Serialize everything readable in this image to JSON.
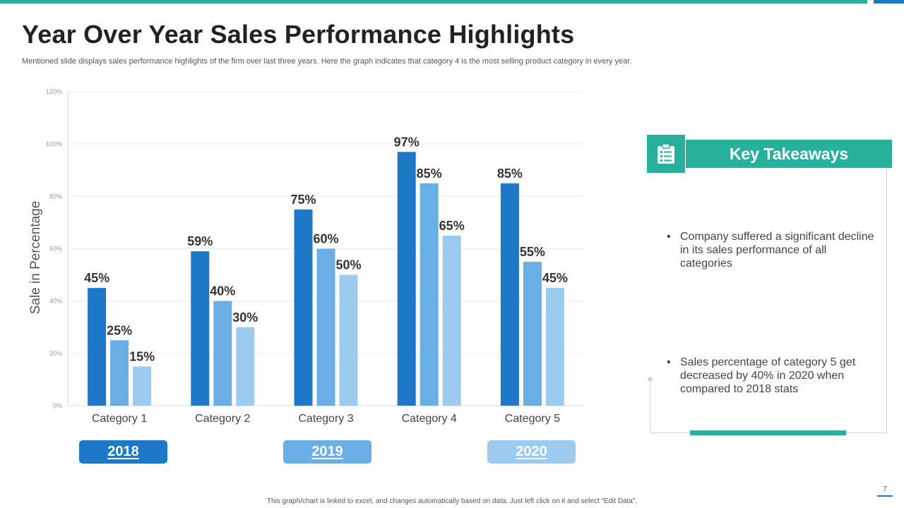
{
  "slide": {
    "title": "Year Over Year Sales Performance Highlights",
    "subtitle": "Mentioned slide displays sales performance highlights of the firm over last three years. Here the graph indicates that category 4 is the most selling product category in every year.",
    "footer": "This graph/chart is linked to excel, and changes automatically based on data. Just left click on it and select “Edit Data”.",
    "page_number": "7"
  },
  "colors": {
    "accent_teal": "#27b09b",
    "accent_blue": "#1e78c8",
    "series_2018": "#1e78c8",
    "series_2019": "#6aaee6",
    "series_2020": "#9dcbf0"
  },
  "years": [
    {
      "label": "2018",
      "color": "#1e78c8"
    },
    {
      "label": "2019",
      "color": "#6aaee6"
    },
    {
      "label": "2020",
      "color": "#9dcbf0"
    }
  ],
  "key_takeaways": {
    "title": "Key Takeaways",
    "icon": "clipboard-list-icon",
    "bullets": [
      "Company suffered a significant decline in its sales performance of all categories",
      "Sales percentage of category 5 get decreased by 40% in 2020 when compared to 2018 stats"
    ]
  },
  "chart_data": {
    "type": "bar",
    "title": "",
    "xlabel": "",
    "ylabel": "Sale in Percentage",
    "categories": [
      "Category 1",
      "Category 2",
      "Category 3",
      "Category 4",
      "Category 5"
    ],
    "series": [
      {
        "name": "2018",
        "values": [
          45,
          59,
          75,
          97,
          85
        ],
        "color": "#1e78c8"
      },
      {
        "name": "2019",
        "values": [
          25,
          40,
          60,
          85,
          55
        ],
        "color": "#6aaee6"
      },
      {
        "name": "2020",
        "values": [
          15,
          30,
          50,
          65,
          45
        ],
        "color": "#9dcbf0"
      }
    ],
    "ylim": [
      0,
      120
    ],
    "yticks": [
      0,
      20,
      40,
      60,
      80,
      100,
      120
    ],
    "ytick_labels": [
      "0%",
      "20%",
      "40%",
      "60%",
      "80%",
      "100%",
      "120%"
    ],
    "value_suffix": "%",
    "grid": true,
    "legend": "bottom"
  }
}
